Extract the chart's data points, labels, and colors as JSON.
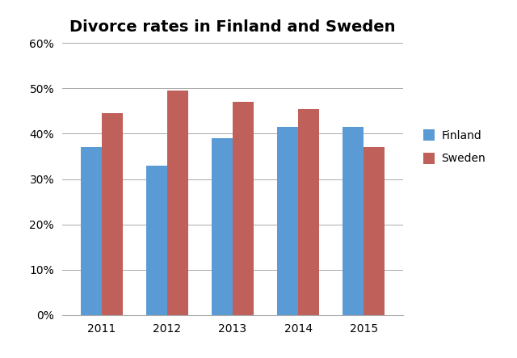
{
  "title": "Divorce rates in Finland and Sweden",
  "years": [
    "2011",
    "2012",
    "2013",
    "2014",
    "2015"
  ],
  "finland": [
    37,
    33,
    39,
    41.5,
    41.5
  ],
  "sweden": [
    44.5,
    49.5,
    47,
    45.5,
    37
  ],
  "finland_color": "#5B9BD5",
  "sweden_color": "#C0605A",
  "bar_width": 0.32,
  "ylim": [
    0,
    60
  ],
  "yticks": [
    0,
    10,
    20,
    30,
    40,
    50,
    60
  ],
  "ytick_labels": [
    "0%",
    "10%",
    "20%",
    "30%",
    "40%",
    "50%",
    "60%"
  ],
  "legend_labels": [
    "Finland",
    "Sweden"
  ],
  "title_fontsize": 14,
  "tick_fontsize": 10,
  "legend_fontsize": 10,
  "figsize": [
    6.4,
    4.43
  ],
  "dpi": 100
}
